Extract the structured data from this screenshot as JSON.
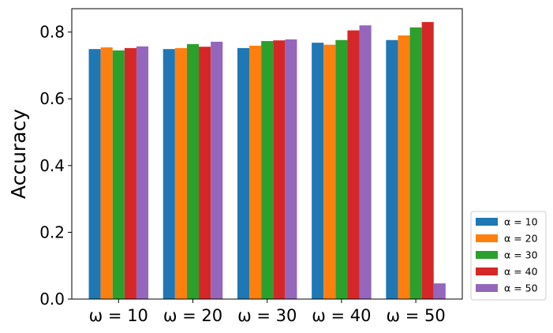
{
  "chart_data": {
    "type": "bar",
    "title": "",
    "xlabel": "",
    "ylabel": "Accuracy",
    "ylim": [
      0,
      0.87
    ],
    "yticks": [
      0.0,
      0.2,
      0.4,
      0.6,
      0.8
    ],
    "ytick_labels": [
      "0.0",
      "0.2",
      "0.4",
      "0.6",
      "0.8"
    ],
    "categories": [
      "ω = 10",
      "ω = 20",
      "ω = 30",
      "ω = 40",
      "ω = 50"
    ],
    "grid": false,
    "legend_position": "outside-lower-right",
    "series": [
      {
        "name": "α = 10",
        "color": "#1f77b4",
        "values": [
          0.749,
          0.749,
          0.752,
          0.768,
          0.776
        ]
      },
      {
        "name": "α = 20",
        "color": "#ff7f0e",
        "values": [
          0.754,
          0.752,
          0.759,
          0.762,
          0.79
        ]
      },
      {
        "name": "α = 30",
        "color": "#2ca02c",
        "values": [
          0.745,
          0.764,
          0.773,
          0.776,
          0.814
        ]
      },
      {
        "name": "α = 40",
        "color": "#d62728",
        "values": [
          0.752,
          0.756,
          0.775,
          0.805,
          0.83
        ]
      },
      {
        "name": "α = 50",
        "color": "#9467bd",
        "values": [
          0.757,
          0.771,
          0.778,
          0.82,
          0.047
        ]
      }
    ]
  }
}
